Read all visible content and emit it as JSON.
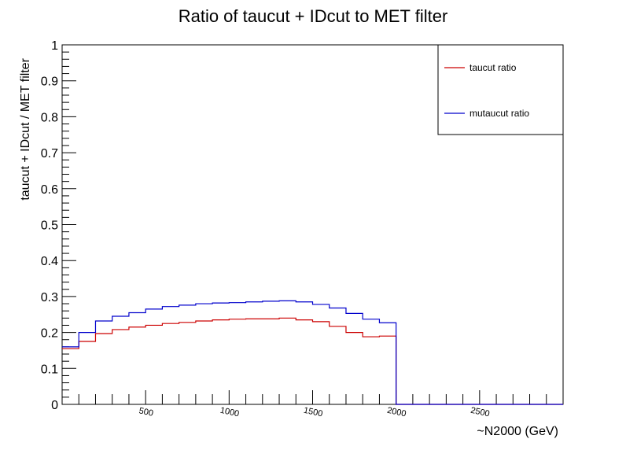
{
  "chart_data": {
    "type": "line",
    "title": "Ratio of taucut + IDcut to MET filter",
    "xlabel": "~N2000 (GeV)",
    "ylabel": "taucut + IDcut / MET filter",
    "xlim": [
      0,
      3000
    ],
    "ylim": [
      0,
      1
    ],
    "x_tick_labels": [
      "500",
      "1000",
      "1500",
      "2000",
      "2500"
    ],
    "y_tick_labels": [
      "0",
      "0.1",
      "0.2",
      "0.3",
      "0.4",
      "0.5",
      "0.6",
      "0.7",
      "0.8",
      "0.9",
      "1"
    ],
    "x_ticks": [
      500,
      1000,
      1500,
      2000,
      2500
    ],
    "y_ticks": [
      0,
      0.1,
      0.2,
      0.3,
      0.4,
      0.5,
      0.6,
      0.7,
      0.8,
      0.9,
      1
    ],
    "bin_width": 100,
    "legend_position": "top-right",
    "grid": false,
    "series": [
      {
        "name": "taucut ratio",
        "color": "#cc0000",
        "x_start": 0,
        "values": [
          0.155,
          0.175,
          0.197,
          0.208,
          0.215,
          0.22,
          0.225,
          0.228,
          0.232,
          0.235,
          0.237,
          0.238,
          0.238,
          0.24,
          0.235,
          0.23,
          0.217,
          0.2,
          0.188,
          0.19,
          0,
          0,
          0,
          0,
          0,
          0,
          0,
          0,
          0,
          0
        ]
      },
      {
        "name": "mutaucut ratio",
        "color": "#0000cc",
        "x_start": 0,
        "values": [
          0.16,
          0.2,
          0.232,
          0.245,
          0.255,
          0.265,
          0.272,
          0.276,
          0.28,
          0.282,
          0.283,
          0.285,
          0.287,
          0.288,
          0.285,
          0.278,
          0.268,
          0.253,
          0.237,
          0.227,
          0,
          0,
          0,
          0,
          0,
          0,
          0,
          0,
          0,
          0
        ]
      }
    ]
  }
}
